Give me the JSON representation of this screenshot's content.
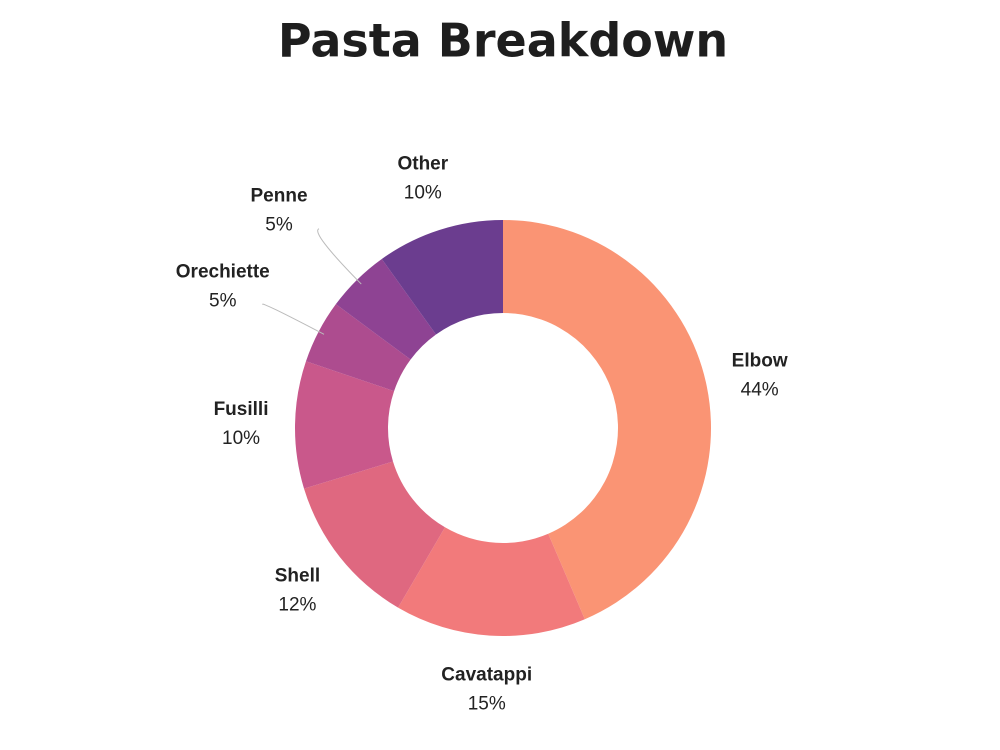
{
  "chart_data": {
    "type": "donut",
    "title": "Pasta Breakdown",
    "categories": [
      "Elbow",
      "Cavatappi",
      "Shell",
      "Fusilli",
      "Orechiette",
      "Penne",
      "Other"
    ],
    "values": [
      44,
      15,
      12,
      10,
      5,
      5,
      10
    ],
    "value_labels": [
      "44%",
      "15%",
      "12%",
      "10%",
      "5%",
      "5%",
      "10%"
    ],
    "colors": [
      "#fa9474",
      "#f27a7b",
      "#df6880",
      "#c9588b",
      "#ad4c8f",
      "#8e4393",
      "#6b3d8f"
    ]
  }
}
